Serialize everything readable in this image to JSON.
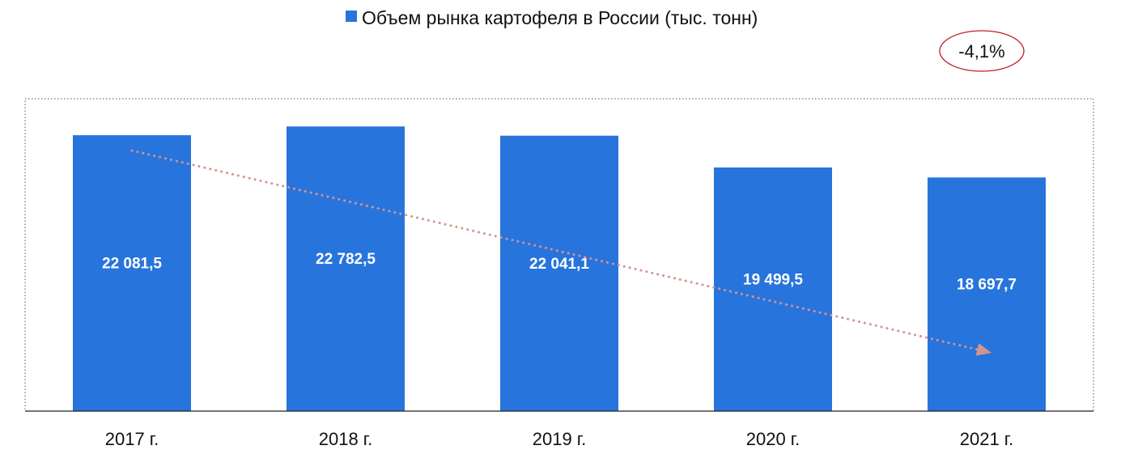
{
  "chart_data": {
    "type": "bar",
    "categories": [
      "2017 г.",
      "2018 г.",
      "2019 г.",
      "2020 г.",
      "2021 г."
    ],
    "series": [
      {
        "name": "Объем рынка картофеля в России (тыс. тонн)",
        "values": [
          22081.5,
          22782.5,
          22041.1,
          19499.5,
          18697.7
        ],
        "labels": [
          "22 081,5",
          "22 782,5",
          "22 041,1",
          "19 499,5",
          "18 697,7"
        ],
        "color": "#2874DD"
      }
    ],
    "legend_position": "top-center",
    "annotation": {
      "text": "-4,1%",
      "border_color": "#C0202A"
    },
    "trend_arrow": {
      "from_category": "2017 г.",
      "to_category": "2021 г.",
      "color": "#D4948C",
      "style": "dotted"
    },
    "ylim": [
      0,
      25000
    ],
    "grid": false,
    "plot_border": "dotted"
  }
}
